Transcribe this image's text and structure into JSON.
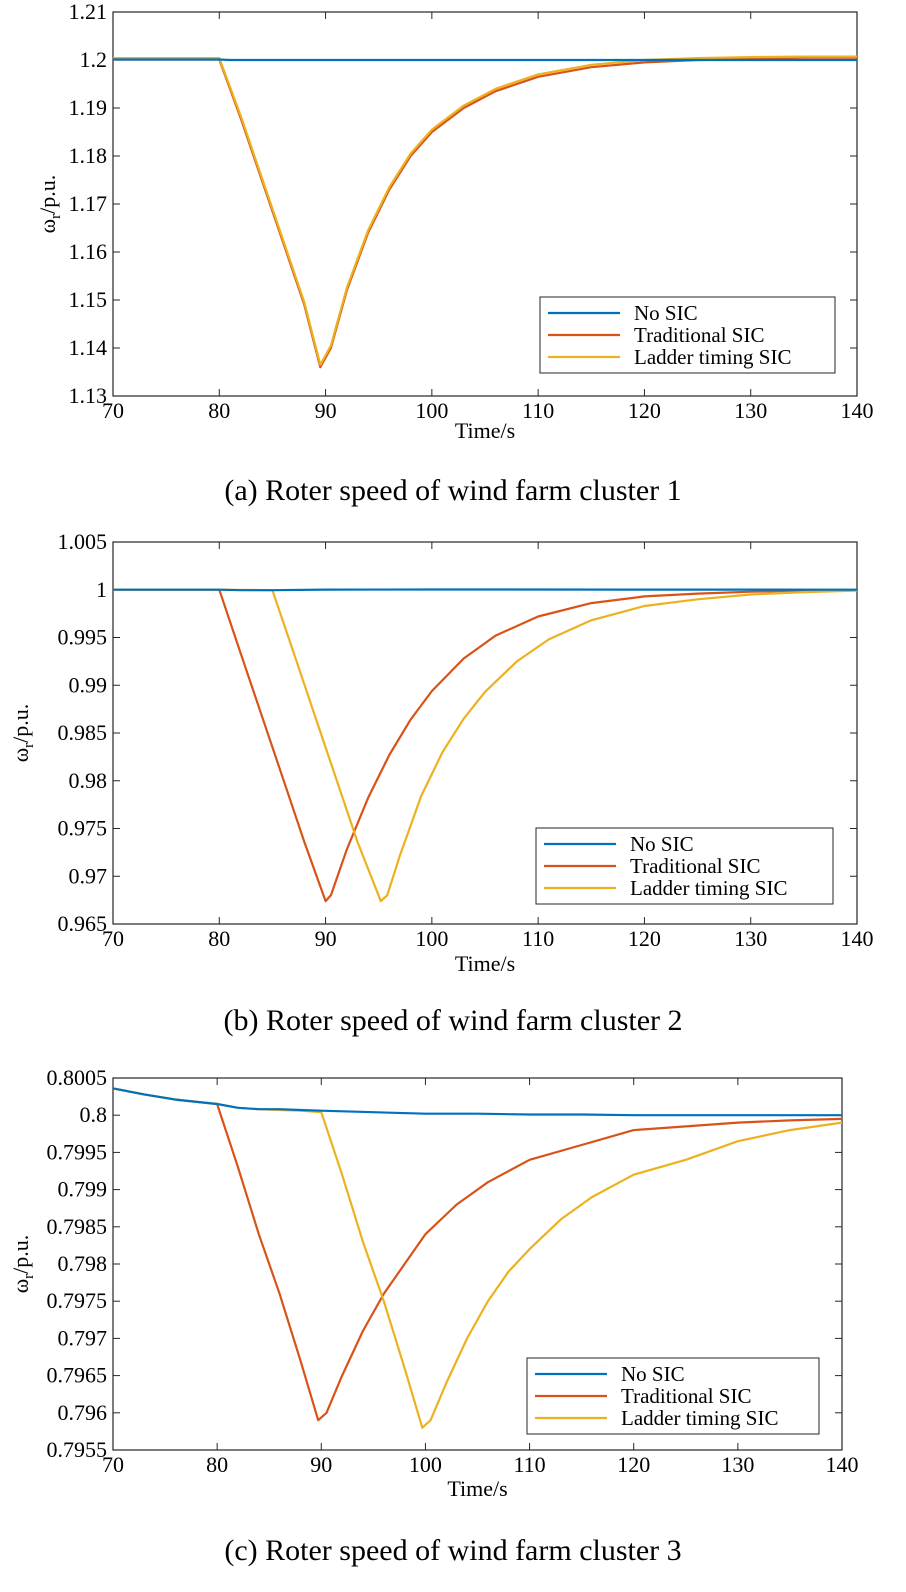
{
  "colors": {
    "no_sic": "#0072BD",
    "traditional": "#D95319",
    "ladder": "#EDB120"
  },
  "chart_data": [
    {
      "type": "line",
      "caption": "(a) Roter speed of wind farm cluster 1",
      "xlabel": "Time/s",
      "ylabel_base": "ω",
      "ylabel_sub": "r",
      "ylabel_unit": "/p.u.",
      "xlim": [
        70,
        140
      ],
      "ylim": [
        1.13,
        1.21
      ],
      "xticks": [
        "70",
        "80",
        "90",
        "100",
        "110",
        "120",
        "130",
        "140"
      ],
      "yticks": [
        "1.13",
        "1.14",
        "1.15",
        "1.16",
        "1.17",
        "1.18",
        "1.19",
        "1.2",
        "1.21"
      ],
      "legend_position": "bottom-right",
      "series": [
        {
          "name": "No SIC",
          "x": [
            70,
            80,
            81,
            90,
            100,
            120,
            140
          ],
          "y": [
            1.2001,
            1.2001,
            1.2,
            1.2,
            1.2,
            1.2,
            1.2
          ]
        },
        {
          "name": "Traditional SIC",
          "x": [
            70,
            80,
            82,
            84,
            86,
            88,
            89.5,
            90.5,
            92,
            94,
            96,
            98,
            100,
            103,
            106,
            110,
            115,
            120,
            125,
            130,
            135,
            140
          ],
          "y": [
            1.2001,
            1.2001,
            1.188,
            1.175,
            1.162,
            1.149,
            1.136,
            1.14,
            1.152,
            1.164,
            1.173,
            1.18,
            1.185,
            1.19,
            1.1935,
            1.1965,
            1.1985,
            1.1995,
            1.2,
            1.2003,
            1.2005,
            1.2005
          ]
        },
        {
          "name": "Ladder timing SIC",
          "x": [
            70,
            80,
            82,
            84,
            86,
            88,
            89.5,
            90.5,
            92,
            94,
            96,
            98,
            100,
            103,
            106,
            110,
            115,
            120,
            125,
            130,
            135,
            140
          ],
          "y": [
            1.2004,
            1.2004,
            1.1885,
            1.1755,
            1.1625,
            1.1495,
            1.1365,
            1.1405,
            1.1525,
            1.1645,
            1.1735,
            1.1805,
            1.1855,
            1.1905,
            1.194,
            1.197,
            1.199,
            1.2,
            1.2004,
            1.2006,
            1.2007,
            1.2007
          ]
        }
      ]
    },
    {
      "type": "line",
      "caption": "(b) Roter speed of wind farm cluster 2",
      "xlabel": "Time/s",
      "ylabel_base": "ω",
      "ylabel_sub": "r",
      "ylabel_unit": "/p.u.",
      "xlim": [
        70,
        140
      ],
      "ylim": [
        0.965,
        1.005
      ],
      "xticks": [
        "70",
        "80",
        "90",
        "100",
        "110",
        "120",
        "130",
        "140"
      ],
      "yticks": [
        "0.965",
        "0.97",
        "0.975",
        "0.98",
        "0.985",
        "0.99",
        "0.995",
        "1",
        "1.005"
      ],
      "legend_position": "bottom-right",
      "series": [
        {
          "name": "No SIC",
          "x": [
            70,
            80,
            82,
            85,
            90,
            100,
            120,
            140
          ],
          "y": [
            1.0,
            1.0,
            0.99995,
            0.99995,
            1.00002,
            1.00003,
            1.00002,
            1.00001
          ]
        },
        {
          "name": "Traditional SIC",
          "x": [
            70,
            80,
            82,
            84,
            86,
            88,
            90,
            90.5,
            92,
            94,
            96,
            98,
            100,
            103,
            106,
            110,
            115,
            120,
            125,
            130,
            135,
            140
          ],
          "y": [
            1.0,
            1.0,
            0.9934,
            0.9868,
            0.9802,
            0.9736,
            0.9674,
            0.968,
            0.9728,
            0.9782,
            0.9827,
            0.9864,
            0.9894,
            0.9928,
            0.9952,
            0.9972,
            0.9986,
            0.9993,
            0.9996,
            0.9998,
            0.9999,
            0.99995
          ]
        },
        {
          "name": "Ladder timing SIC",
          "x": [
            70,
            80,
            85,
            87,
            89,
            91,
            93,
            95.2,
            95.8,
            97,
            99,
            101,
            103,
            105,
            108,
            111,
            115,
            120,
            125,
            130,
            135,
            140
          ],
          "y": [
            1.0,
            1.0,
            0.99995,
            0.9934,
            0.9868,
            0.9802,
            0.9736,
            0.9674,
            0.968,
            0.9722,
            0.9784,
            0.983,
            0.9865,
            0.9893,
            0.9925,
            0.9948,
            0.9968,
            0.9983,
            0.999,
            0.9995,
            0.99975,
            0.9999
          ]
        }
      ]
    },
    {
      "type": "line",
      "caption": "(c) Roter speed of wind farm cluster 3",
      "xlabel": "Time/s",
      "ylabel_base": "ω",
      "ylabel_sub": "r",
      "ylabel_unit": "/p.u.",
      "xlim": [
        70,
        140
      ],
      "ylim": [
        0.7955,
        0.8005
      ],
      "xticks": [
        "70",
        "80",
        "90",
        "100",
        "110",
        "120",
        "130",
        "140"
      ],
      "yticks": [
        "0.7955",
        "0.796",
        "0.7965",
        "0.797",
        "0.7975",
        "0.798",
        "0.7985",
        "0.799",
        "0.7995",
        "0.8",
        "0.8005"
      ],
      "legend_position": "bottom-right",
      "series": [
        {
          "name": "No SIC",
          "x": [
            70,
            73,
            76,
            80,
            82,
            84,
            86,
            88,
            90,
            95,
            100,
            105,
            110,
            115,
            120,
            125,
            130,
            135,
            140
          ],
          "y": [
            0.80036,
            0.80028,
            0.80021,
            0.80015,
            0.8001,
            0.80008,
            0.80008,
            0.80007,
            0.80006,
            0.80004,
            0.80002,
            0.80002,
            0.80001,
            0.80001,
            0.8,
            0.8,
            0.8,
            0.8,
            0.8
          ]
        },
        {
          "name": "Traditional SIC",
          "x": [
            70,
            73,
            76,
            80,
            82,
            84,
            86,
            88,
            89.7,
            90.5,
            92,
            94,
            96,
            98,
            100,
            103,
            106,
            110,
            115,
            120,
            125,
            130,
            135,
            140
          ],
          "y": [
            0.80036,
            0.80028,
            0.80021,
            0.80015,
            0.7993,
            0.7984,
            0.7976,
            0.7967,
            0.7959,
            0.796,
            0.7965,
            0.7971,
            0.7976,
            0.798,
            0.7984,
            0.7988,
            0.7991,
            0.7994,
            0.7996,
            0.7998,
            0.79985,
            0.7999,
            0.79993,
            0.79995
          ]
        },
        {
          "name": "Ladder timing SIC",
          "x": [
            70,
            73,
            76,
            80,
            82,
            84,
            86,
            88,
            90,
            92,
            94,
            96,
            98,
            99.7,
            100.5,
            102,
            104,
            106,
            108,
            110,
            113,
            116,
            120,
            125,
            130,
            135,
            140
          ],
          "y": [
            0.80036,
            0.80028,
            0.80021,
            0.80015,
            0.8001,
            0.80008,
            0.80007,
            0.80006,
            0.80004,
            0.7992,
            0.7983,
            0.7975,
            0.7966,
            0.7958,
            0.7959,
            0.7964,
            0.797,
            0.7975,
            0.7979,
            0.7982,
            0.7986,
            0.7989,
            0.7992,
            0.7994,
            0.79965,
            0.7998,
            0.7999
          ]
        }
      ]
    }
  ]
}
